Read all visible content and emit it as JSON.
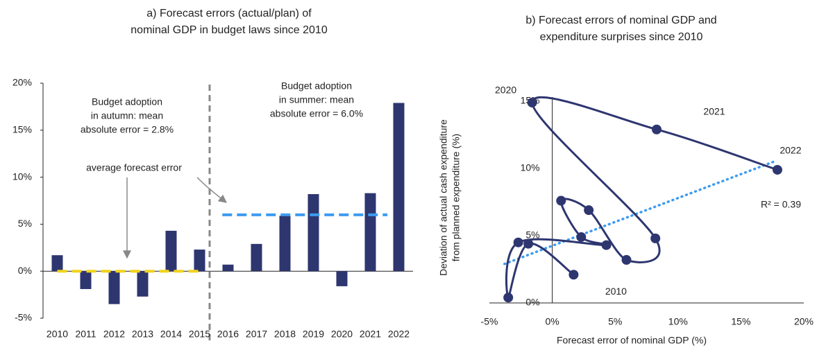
{
  "chart_data": [
    {
      "type": "bar",
      "title": [
        "a) Forecast errors (actual/plan) of",
        "nominal GDP in budget laws since 2010"
      ],
      "categories": [
        "2010",
        "2011",
        "2012",
        "2013",
        "2014",
        "2015",
        "2016",
        "2017",
        "2018",
        "2019",
        "2020",
        "2021",
        "2022"
      ],
      "values": [
        1.7,
        -1.9,
        -3.5,
        -2.7,
        4.3,
        2.3,
        0.7,
        2.9,
        5.9,
        8.2,
        -1.6,
        8.3,
        17.9
      ],
      "color": "#2e3670",
      "ylim": [
        -5,
        20
      ],
      "yticks": [
        {
          "value": -5,
          "label": "-5%"
        },
        {
          "value": 0,
          "label": "0%"
        },
        {
          "value": 5,
          "label": "5%"
        },
        {
          "value": 10,
          "label": "10%"
        },
        {
          "value": 15,
          "label": "15%"
        },
        {
          "value": 20,
          "label": "20%"
        }
      ],
      "reference_lines": [
        {
          "value": 0,
          "color": "#f2d31b"
        },
        {
          "value": 6.0,
          "color": "#3d9bf0"
        }
      ],
      "annotations": [
        [
          "Budget adoption",
          "in autumn: mean",
          "absolute error = 2.8%"
        ],
        [
          "Budget adoption",
          "in summer: mean",
          "absolute error = 6.0%"
        ],
        [
          "average forecast error"
        ]
      ]
    },
    {
      "type": "scatter",
      "title": [
        "b) Forecast errors of nominal GDP and",
        "expenditure surprises since 2010"
      ],
      "x_label": "Forecast error of nominal GDP (%)",
      "y_label": [
        "Deviation of actual cash expenditure",
        "from planned expenditure (%)"
      ],
      "x": [
        1.7,
        -1.9,
        -3.5,
        -2.7,
        4.3,
        2.3,
        0.7,
        2.9,
        5.9,
        8.2,
        -1.6,
        8.3,
        17.9
      ],
      "values": [
        2.1,
        4.4,
        0.4,
        4.5,
        4.3,
        4.9,
        7.6,
        6.9,
        3.2,
        4.8,
        14.9,
        12.9,
        9.9
      ],
      "point_labels": [
        "2010",
        null,
        null,
        null,
        null,
        null,
        null,
        null,
        null,
        null,
        "2020",
        "2021",
        "2022"
      ],
      "color": "#2e3670",
      "trendline": {
        "x": [
          -3.8,
          17.6
        ],
        "values": [
          2.9,
          10.5
        ],
        "color": "#3d9bf0",
        "label": "R² = 0.39"
      },
      "xlim": [
        -5,
        20
      ],
      "xticks": [
        {
          "value": -5,
          "label": "-5%"
        },
        {
          "value": 0,
          "label": "0%"
        },
        {
          "value": 5,
          "label": "5%"
        },
        {
          "value": 10,
          "label": "10%"
        },
        {
          "value": 15,
          "label": "15%"
        },
        {
          "value": 20,
          "label": "20%"
        }
      ],
      "ylim": [
        0,
        15
      ],
      "yticks": [
        {
          "value": 0,
          "label": "0%"
        },
        {
          "value": 5,
          "label": "5%"
        },
        {
          "value": 10,
          "label": "10%"
        },
        {
          "value": 15,
          "label": "15%"
        }
      ]
    }
  ]
}
